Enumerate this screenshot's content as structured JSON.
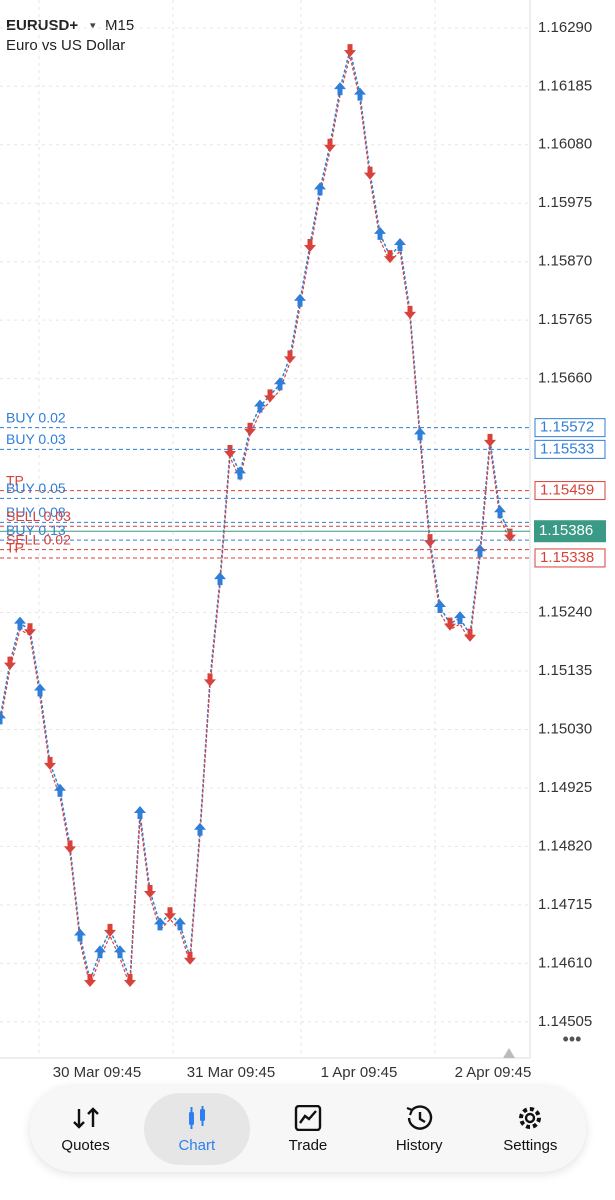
{
  "header": {
    "symbol": "EURUSD+",
    "timeframe": "M15",
    "description": "Euro vs US Dollar"
  },
  "price_axis": {
    "ylim": [
      1.1444,
      1.1634
    ],
    "yticks": [
      {
        "value": 1.1629,
        "label": "1.16290"
      },
      1.16185,
      {
        "value": 1.1608,
        "label": "1.16080"
      },
      1.15975,
      {
        "value": 1.1587,
        "label": "1.15870"
      },
      1.15765,
      {
        "value": 1.1566,
        "label": "1.15660"
      },
      {
        "value": 1.1524,
        "label": "1.15240"
      },
      1.15135,
      {
        "value": 1.1503,
        "label": "1.15030"
      },
      1.14925,
      {
        "value": 1.1482,
        "label": "1.14820"
      },
      1.14715,
      {
        "value": 1.1461,
        "label": "1.14610"
      },
      1.14505
    ]
  },
  "time_axis": {
    "labels": [
      "30 Mar 09:45",
      "31 Mar 09:45",
      "1 Apr 09:45",
      "2 Apr 09:45"
    ]
  },
  "price_path": [
    1.1505,
    1.1515,
    1.1522,
    1.1521,
    1.151,
    1.1497,
    1.1492,
    1.1482,
    1.1466,
    1.1458,
    1.1463,
    1.1467,
    1.1463,
    1.1458,
    1.1488,
    1.1474,
    1.1468,
    1.147,
    1.1468,
    1.1462,
    1.1485,
    1.1512,
    1.153,
    1.1553,
    1.1549,
    1.1557,
    1.1561,
    1.1563,
    1.1565,
    1.157,
    1.158,
    1.159,
    1.16,
    1.1608,
    1.1618,
    1.1625,
    1.1617,
    1.1603,
    1.1592,
    1.1588,
    1.159,
    1.1578,
    1.1556,
    1.1537,
    1.1525,
    1.1522,
    1.1523,
    1.152,
    1.1535,
    1.1555,
    1.1542,
    1.1538
  ],
  "levels": [
    {
      "label": "BUY 0.02",
      "price": 1.15572,
      "price_label": "1.15572",
      "color": "#2f7fd8"
    },
    {
      "label": "BUY 0.03",
      "price": 1.15533,
      "price_label": "1.15533",
      "color": "#2f7fd8"
    },
    {
      "label": "TP",
      "price": 1.15459,
      "price_label": "1.15459",
      "color": "#d8423a"
    },
    {
      "label": "BUY 0.05",
      "price": 1.15445,
      "color": "#2f7fd8"
    },
    {
      "label": "BUY 0.08",
      "price": 1.15402,
      "color": "#2f7fd8"
    },
    {
      "label": "SELL 0.03",
      "price": 1.15395,
      "color": "#d8423a"
    },
    {
      "label": "BUY 0.13",
      "price": 1.1537,
      "color": "#2f7fd8"
    },
    {
      "label": "SELL 0.02",
      "price": 1.15353,
      "color": "#d8423a"
    },
    {
      "label": "TP",
      "price": 1.15338,
      "price_label": "1.15338",
      "color": "#d8423a"
    }
  ],
  "current_price": {
    "value": 1.15386,
    "label": "1.15386",
    "color": "#3a9a86"
  },
  "nav": [
    "Quotes",
    "Chart",
    "Trade",
    "History",
    "Settings"
  ]
}
